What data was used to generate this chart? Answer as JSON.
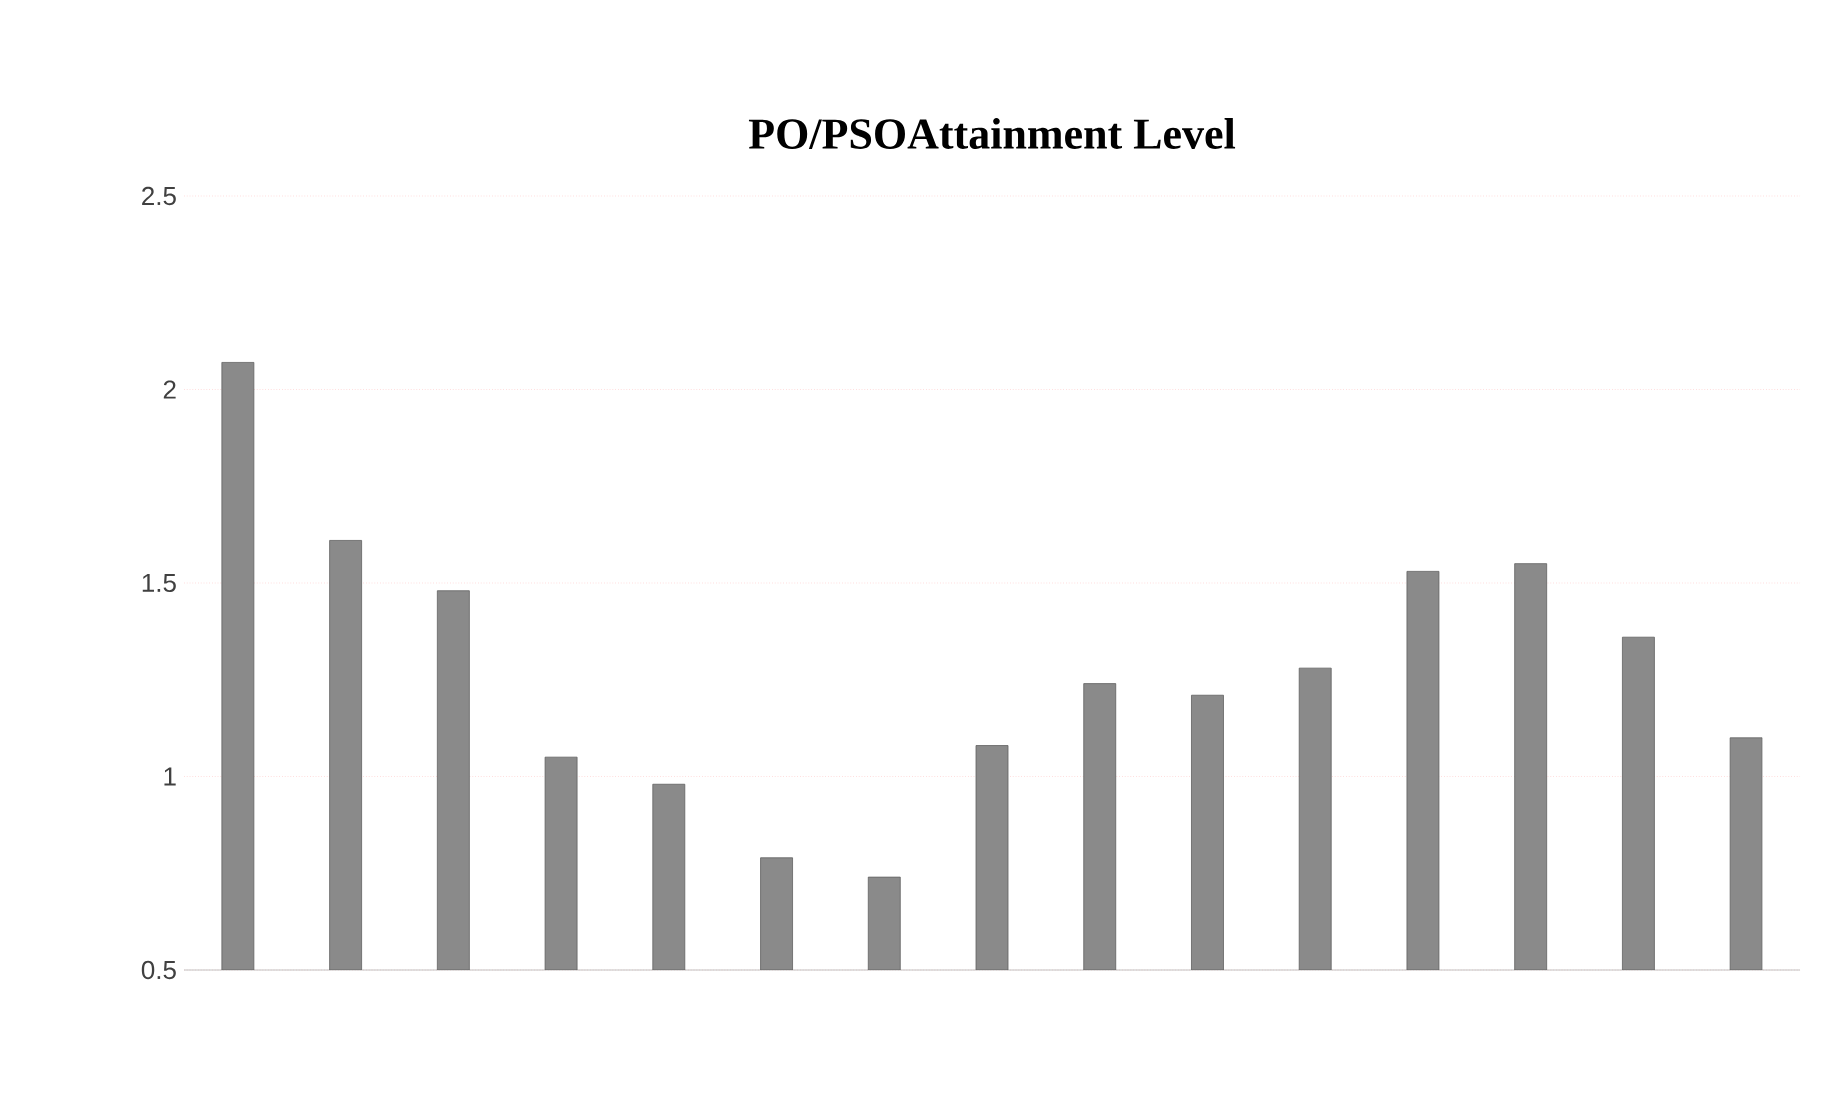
{
  "chart_data": {
    "type": "bar",
    "title": "PO/PSOAttainment Level",
    "categories": [
      null,
      null,
      null,
      null,
      null,
      null,
      null,
      null,
      null,
      null,
      null,
      null,
      null,
      null,
      null
    ],
    "values": [
      2.07,
      1.61,
      1.48,
      1.05,
      0.98,
      0.79,
      0.74,
      1.08,
      1.24,
      1.21,
      1.28,
      1.53,
      1.55,
      1.36,
      1.1
    ],
    "color": "#8a8a8a",
    "ylim": [
      0.5,
      2.5
    ],
    "yticks": [
      0.5,
      1,
      1.5,
      2,
      2.5
    ],
    "grid": "y"
  }
}
